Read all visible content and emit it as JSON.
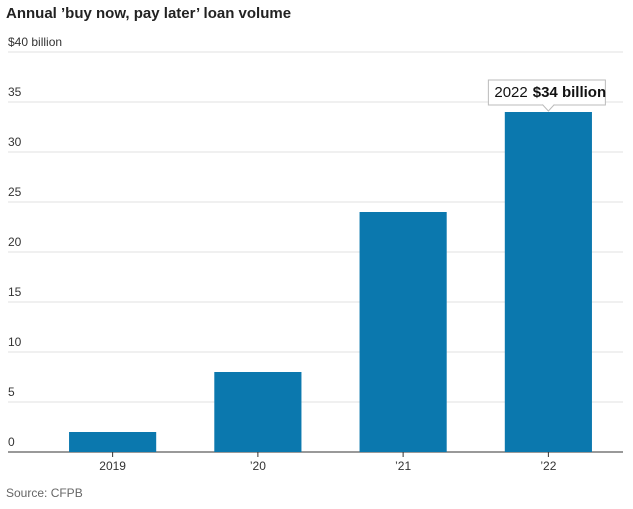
{
  "chart_data": {
    "type": "bar",
    "title": "Annual ’buy now, pay later’ loan volume",
    "categories": [
      "2019",
      "’20",
      "’21",
      "’22"
    ],
    "values": [
      2,
      8,
      24,
      34
    ],
    "color": "#0b78ae",
    "ylim": [
      0,
      40
    ],
    "yticks": [
      0,
      5,
      10,
      15,
      20,
      25,
      30,
      35,
      {
        "value": 40,
        "label": "$40 billion"
      }
    ],
    "grid": true,
    "annotation": {
      "label": "2022",
      "text": "$34 billion"
    },
    "source": "Source: CFPB"
  }
}
